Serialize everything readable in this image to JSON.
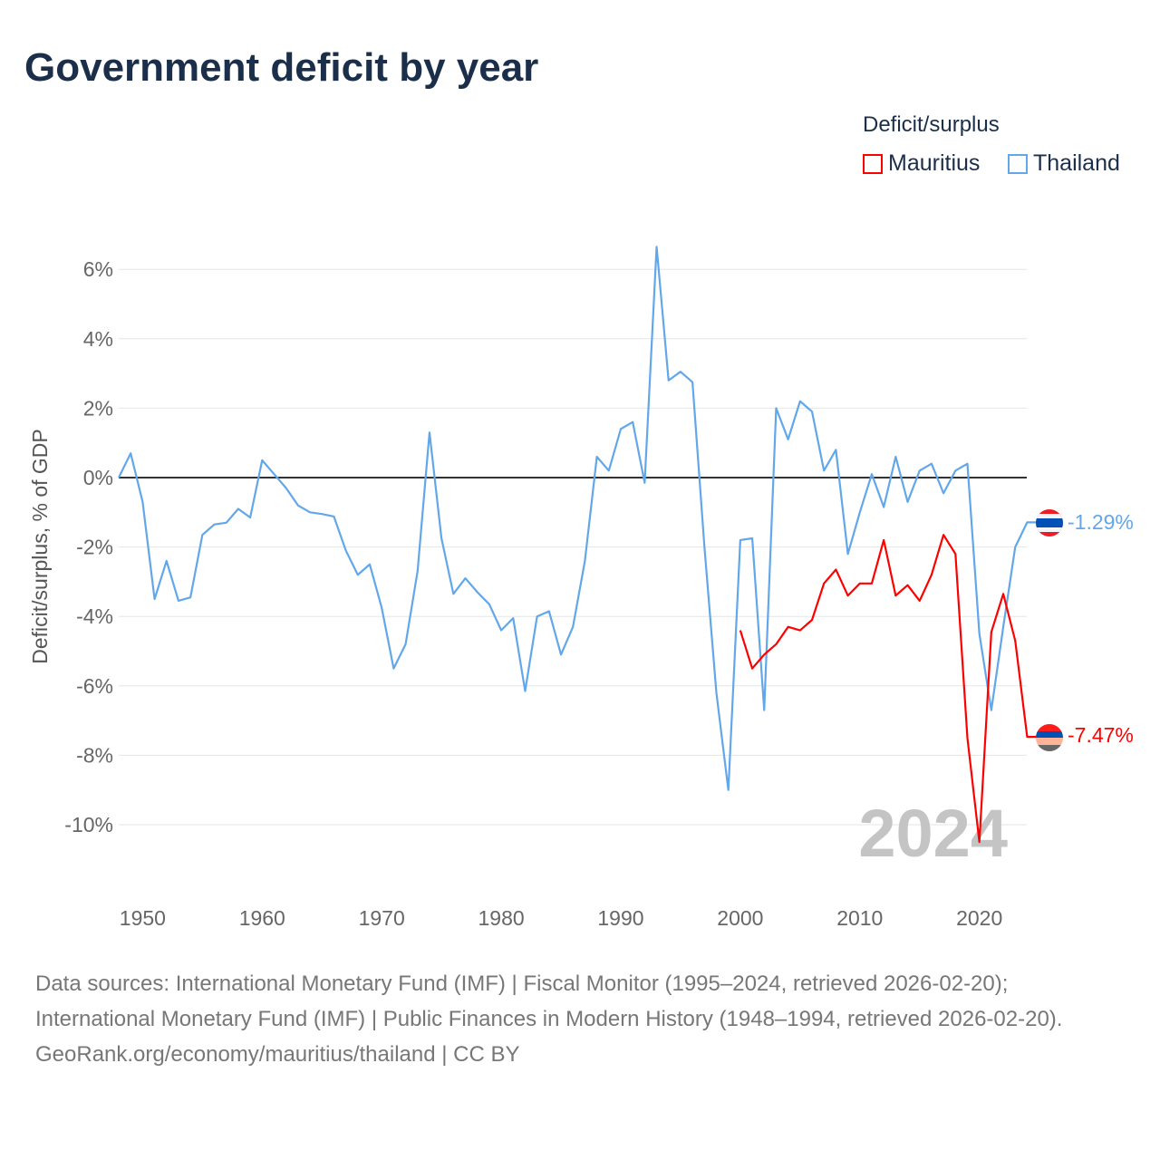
{
  "title": "Government deficit by year",
  "legend": {
    "title": "Deficit/surplus",
    "items": [
      {
        "label": "Mauritius",
        "color": "#ff0000"
      },
      {
        "label": "Thailand",
        "color": "#62a7ea"
      }
    ]
  },
  "chart_data": {
    "type": "line",
    "title": "Government deficit by year",
    "xlabel": "",
    "ylabel": "Deficit/surplus, % of GDP",
    "xlim": [
      1948,
      2024
    ],
    "ylim": [
      -11.5,
      7.5
    ],
    "x_ticks": [
      1950,
      1960,
      1970,
      1980,
      1990,
      2000,
      2010,
      2020
    ],
    "x_tick_labels": [
      "1950",
      "1960",
      "1970",
      "1980",
      "1990",
      "2000",
      "2010",
      "2020"
    ],
    "y_ticks": [
      6,
      4,
      2,
      0,
      -2,
      -4,
      -6,
      -8,
      -10
    ],
    "y_tick_labels": [
      "6%",
      "4%",
      "2%",
      "0%",
      "-2%",
      "-4%",
      "-6%",
      "-8%",
      "-10%"
    ],
    "grid": true,
    "legend_position": "top-right",
    "year_watermark": "2024",
    "series": [
      {
        "name": "Thailand",
        "color": "#62a7ea",
        "end_label": "-1.29%",
        "start_year": 1948,
        "values": [
          0,
          0.7,
          -0.7,
          -3.5,
          -2.4,
          -3.55,
          -3.45,
          -1.65,
          -1.35,
          -1.3,
          -0.9,
          -1.15,
          0.5,
          0.1,
          -0.3,
          -0.8,
          -1.0,
          -1.05,
          -1.12,
          -2.1,
          -2.8,
          -2.5,
          -3.75,
          -5.5,
          -4.8,
          -2.7,
          1.3,
          -1.75,
          -3.35,
          -2.9,
          -3.3,
          -3.65,
          -4.4,
          -4.05,
          -6.15,
          -4.0,
          -3.85,
          -5.1,
          -4.3,
          -2.4,
          0.6,
          0.2,
          1.4,
          1.6,
          -0.15,
          6.65,
          2.8,
          3.05,
          2.75,
          -2.0,
          -6.2,
          -9.0,
          -1.8,
          -1.75,
          -6.7,
          2.0,
          1.1,
          2.2,
          1.9,
          0.2,
          0.8,
          -2.2,
          -1.0,
          0.1,
          -0.85,
          0.6,
          -0.7,
          0.2,
          0.4,
          -0.45,
          0.2,
          0.4,
          -4.5,
          -6.7,
          -4.3,
          -2.0,
          -1.29
        ]
      },
      {
        "name": "Mauritius",
        "color": "#ff0000",
        "end_label": "-7.47%",
        "start_year": 2000,
        "values": [
          -4.4,
          -5.5,
          -5.1,
          -4.8,
          -4.3,
          -4.4,
          -4.1,
          -3.05,
          -2.65,
          -3.4,
          -3.05,
          -3.05,
          -1.8,
          -3.4,
          -3.1,
          -3.55,
          -2.8,
          -1.65,
          -2.2,
          -7.5,
          -10.5,
          -4.45,
          -3.35,
          -4.7,
          -7.47
        ]
      }
    ]
  },
  "footer": {
    "sources": "Data sources: International Monetary Fund (IMF) | Fiscal Monitor (1995–2024, retrieved 2026-02-20); International Monetary Fund (IMF) | Public Finances in Modern History (1948–1994, retrieved 2026-02-20).",
    "attribution": "GeoRank.org/economy/mauritius/thailand | CC BY"
  }
}
